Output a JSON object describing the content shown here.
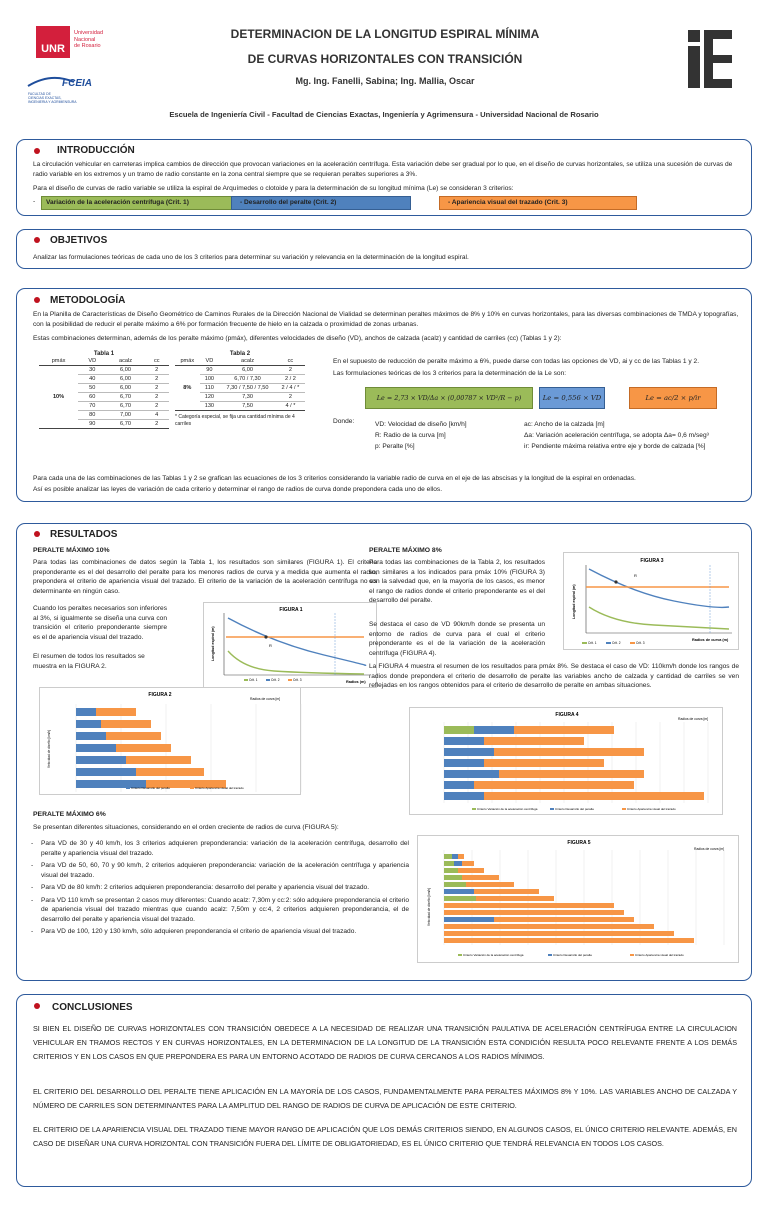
{
  "header": {
    "logo_unr": "UNR",
    "logo_unr_text": [
      "Universidad",
      "Nacional",
      "de Rosario"
    ],
    "logo_fceia": "FCEIA",
    "logo_fceia_sub": [
      "FACULTAD DE",
      "CIENCIAS EXACTAS,",
      "INGENIERIA Y AGRIMENSURA"
    ],
    "title1": "DETERMINACION DE LA LONGITUD ESPIRAL MÍNIMA",
    "title2": "DE CURVAS HORIZONTALES CON TRANSICIÓN",
    "authors": "Mg. Ing. Fanelli, Sabina; Ing. Mallia, Oscar",
    "affiliation": "Escuela de Ingeniería Civil  -  Facultad de Ciencias Exactas, Ingeniería y Agrimensura  -  Universidad Nacional de Rosario"
  },
  "intro": {
    "title": "INTRODUCCIÓN",
    "p1": "La circulación vehicular en carreteras implica cambios de dirección que provocan variaciones en la aceleración centrífuga. Esta variación debe ser gradual por lo que, en el diseño de curvas horizontales, se utiliza una sucesión de curvas de radio variable en los extremos y un tramo de radio constante en la zona central siempre que se requieran peraltes superiores a 3%.",
    "p2": "Para el diseño de curvas de radio variable se utiliza la espiral de Arquímedes o clotoide y para la determinación de su longitud mínima (Le) se consideran 3 criterios:",
    "crit1": "Variación de la aceleración centrífuga (Crit. 1)",
    "crit2": "- Desarrollo del peralte (Crit. 2)",
    "crit3": "- Apariencia visual del trazado (Crit. 3)"
  },
  "objetivos": {
    "title": "OBJETIVOS",
    "text": "Analizar las formulaciones teóricas de cada uno de los 3 criterios para determinar su variación y relevancia en la determinación de la longitud espiral."
  },
  "metodologia": {
    "title": "METODOLOGÍA",
    "p1": "En la Planilla de Características de Diseño Geométrico de Caminos Rurales de la Dirección Nacional de Vialidad se determinan peraltes máximos de 8% y 10% en curvas horizontales, para las diversas combinaciones de TMDA y topografías, con la posibilidad de reducir el peralte máximo a 6% por formación frecuente de hielo en la calzada o proximidad de zonas urbanas.",
    "p2": "Estas combinaciones determinan, además de los peralte máximo (pmáx), diferentes velocidades de diseño (VD), anchos de calzada (acalz) y cantidad de carriles (cc) (Tablas 1 y 2):",
    "tabla1": {
      "title": "Tabla 1",
      "headers": [
        "pmáx",
        "VD",
        "acalz",
        "cc"
      ],
      "pmax": "10%",
      "rows": [
        [
          "30",
          "6,00",
          "2"
        ],
        [
          "40",
          "6,00",
          "2"
        ],
        [
          "50",
          "6,00",
          "2"
        ],
        [
          "60",
          "6,70",
          "2"
        ],
        [
          "70",
          "6,70",
          "2"
        ],
        [
          "80",
          "7,00",
          "4"
        ],
        [
          "90",
          "6,70",
          "2"
        ]
      ]
    },
    "tabla2": {
      "title": "Tabla 2",
      "headers": [
        "pmáx",
        "VD",
        "acalz",
        "cc"
      ],
      "pmax": "8%",
      "rows": [
        [
          "90",
          "6,00",
          "2"
        ],
        [
          "100",
          "6,70 / 7,30",
          "2 / 2"
        ],
        [
          "110",
          "7,30 / 7,50 / 7,50",
          "2 / 4 / *"
        ],
        [
          "120",
          "7,30",
          "2"
        ],
        [
          "130",
          "7,50",
          "4 / *"
        ]
      ],
      "note": "* Categoría especial, se fija una cantidad mínima de 4 carriles"
    },
    "p3": "En el supuesto de reducción de peralte máximo a 6%, puede darse con todas las opciones de VD, ai y cc de las Tablas 1 y 2.",
    "p4": "Las formulaciones teóricas de los 3 criterios para la determinación de la Le son:",
    "f1": "Le = 2,73 × VD/Δa × (0,00787 × VD²/R − p)",
    "f2": "Le = 0,556 × VD",
    "f3": "Le = ac/2 × p/ir",
    "donde": "Donde:",
    "d1": "VD: Velocidad de diseño [km/h]",
    "d2": "R:   Radio de la curva [m]",
    "d3": "p:   Peralte [%]",
    "d4": "ac:   Ancho de la calzada [m]",
    "d5": "Δa:  Variación aceleración centrífuga, se adopta Δa= 0,6 m/seg³",
    "d6": "ir:    Pendiente máxima relativa entre eje y borde de calzada [%]",
    "p5": "Para cada una de las combinaciones de las Tablas 1 y 2 se grafican las ecuaciones de los 3 criterios considerando la variable radio de curva en el eje de las abscisas y la longitud de la espiral en ordenadas.",
    "p6": "Así es posible analizar las leyes de variación de cada criterio y determinar el rango de radios de curva donde prepondera cada uno de ellos."
  },
  "resultados": {
    "title": "RESULTADOS",
    "pm10_title": "PERALTE MÁXIMO 10%",
    "pm10_p1": "Para todas las combinaciones de datos según la Tabla 1, los resultados son similares (FIGURA 1). El criterio preponderante es el del desarrollo del peralte para los menores radios de curva y a medida que aumenta el radio, prepondera el criterio de apariencia visual del trazado. El criterio de la variación de la aceleración centrífuga no es determinante en ningún caso.",
    "pm10_p2": "Cuando los peraltes necesarios son inferiores al 3%, si igualmente se diseña una curva con transición el criterio preponderante siempre es el de apariencia visual del trazado.",
    "pm10_p3": "El resumen de todos los resultados se muestra en la FIGURA 2.",
    "pm8_title": "PERALTE MÁXIMO 8%",
    "pm8_p1": "Para todas las combinaciones de la Tabla 2, los resultados son similares a los indicados para pmáx 10% (FIGURA 3) con la salvedad que, en la mayoría de los casos, es menor el rango de radios donde el criterio preponderante es el del desarrollo del peralte.",
    "pm8_p2": "Se destaca el caso de VD 90km/h donde se presenta un entorno de radios de curva para el cual el criterio preponderante es el de la variación de la aceleración centrífuga (FIGURA 4).",
    "pm8_p3": "La FIGURA 4 muestra el resumen de los resultados para pmáx 8%. Se destaca el caso de VD: 110km/h donde los rangos de radios donde prepondera el criterio de desarrollo de peralte las variables ancho de calzada y cantidad de carriles se ven reflejadas en los rangos obtenidos para el criterio de desarrollo de peralte en ambas situaciones.",
    "pm6_title": "PERALTE MÁXIMO 6%",
    "pm6_p1": "Se presentan diferentes situaciones, considerando en el orden creciente de radios de curva (FIGURA 5):",
    "pm6_items": [
      "Para VD de 30 y 40 km/h, los 3 criterios adquieren preponderancia: variación de la aceleración centrífuga, desarrollo del peralte y apariencia visual del trazado.",
      "Para VD de 50, 60, 70 y 90 km/h, 2 criterios adquieren preponderancia: variación de la aceleración centrífuga y apariencia visual del trazado.",
      "Para VD de 80 km/h: 2 criterios adquieren preponderancia: desarrollo del peralte y apariencia visual del trazado.",
      "Para VD 110 km/h se presentan 2 casos muy diferentes: Cuando acalz: 7,30m y cc:2: sólo adquiere preponderancia el criterio de apariencia visual del trazado mientras que cuando acalz: 7,50m y cc:4, 2 criterios adquieren preponderancia, el de desarrollo del peralte y apariencia visual del trazado.",
      "Para VD de 100, 120 y 130 km/h, sólo adquieren preponderancia el criterio de apariencia visual del trazado."
    ]
  },
  "fig_labels": {
    "fig1": "FIGURA 1",
    "fig2": "FIGURA 2",
    "fig3": "FIGURA 3",
    "fig4": "FIGURA 4",
    "fig5": "FIGURA 5",
    "ylabel": "Longitud espiral (m)",
    "xlabel": "Radios (m)",
    "xlabel3": "Radios de curva (m)",
    "legend": [
      "Crit. 1",
      "Crit. 2",
      "Crit. 3"
    ],
    "bar_legend": [
      "Criterio Variación de la aceleración centrífuga",
      "Criterio Desarrollo del peralte",
      "Criterio Apariencia visual del trazado"
    ],
    "radios_label": "Radios de curva [m]",
    "vel_label": "Velocidad de diseño [km/h]"
  },
  "conclusiones": {
    "title": "CONCLUSIONES",
    "p1": "SI BIEN EL DISEÑO DE CURVAS HORIZONTALES CON TRANSICIÓN OBEDECE A LA NECESIDAD DE REALIZAR UNA TRANSICIÓN PAULATIVA DE ACELERACIÓN CENTRÍFUGA ENTRE LA CIRCULACION VEHICULAR EN TRAMOS RECTOS Y EN CURVAS HORIZONTALES, EN LA DETERMINACION DE LA LONGITUD DE LA TRANSICIÓN ESTA CONDICIÓN RESULTA POCO RELEVANTE FRENTE A LOS DEMÁS CRITERIOS Y EN LOS CASOS EN QUE PREPONDERA ES PARA UN ENTORNO ACOTADO DE RADIOS DE CURVA CERCANOS A LOS RADIOS MÍNIMOS.",
    "p2": "EL CRITERIO DEL DESARROLLO DEL PERALTE TIENE APLICACIÓN EN LA MAYORÍA DE LOS CASOS, FUNDAMENTALMENTE PARA PERALTES MÁXIMOS 8% Y 10%.  LAS VARIABLES ANCHO DE CALZADA Y NÚMERO DE CARRILES  SON DETERMINANTES PARA LA AMPLITUD DEL RANGO DE RADIOS DE CURVA DE APLICACIÓN DE ESTE CRITERIO.",
    "p3": "EL CRITERIO DE LA APARIENCIA VISUAL DEL TRAZADO TIENE MAYOR RANGO DE APLICACIÓN QUE LOS DEMÁS CRITERIOS SIENDO, EN ALGUNOS CASOS, EL ÚNICO CRITERIO RELEVANTE. ADEMÁS, EN CASO DE DISEÑAR UNA CURVA HORIZONTAL CON TRANSICIÓN FUERA DEL LÍMITE DE OBLIGATORIEDAD, ES EL ÚNICO CRITERIO QUE TENDRÁ RELEVANCIA EN TODOS LOS CASOS."
  },
  "colors": {
    "panel_border": "#2e5a9c",
    "bullet": "#c0121f",
    "crit1": "#9bbb59",
    "crit2": "#4f81bd",
    "crit3": "#f79646",
    "formula1": "#9bbb59",
    "formula2": "#6b9ad6",
    "formula3": "#f79646"
  }
}
